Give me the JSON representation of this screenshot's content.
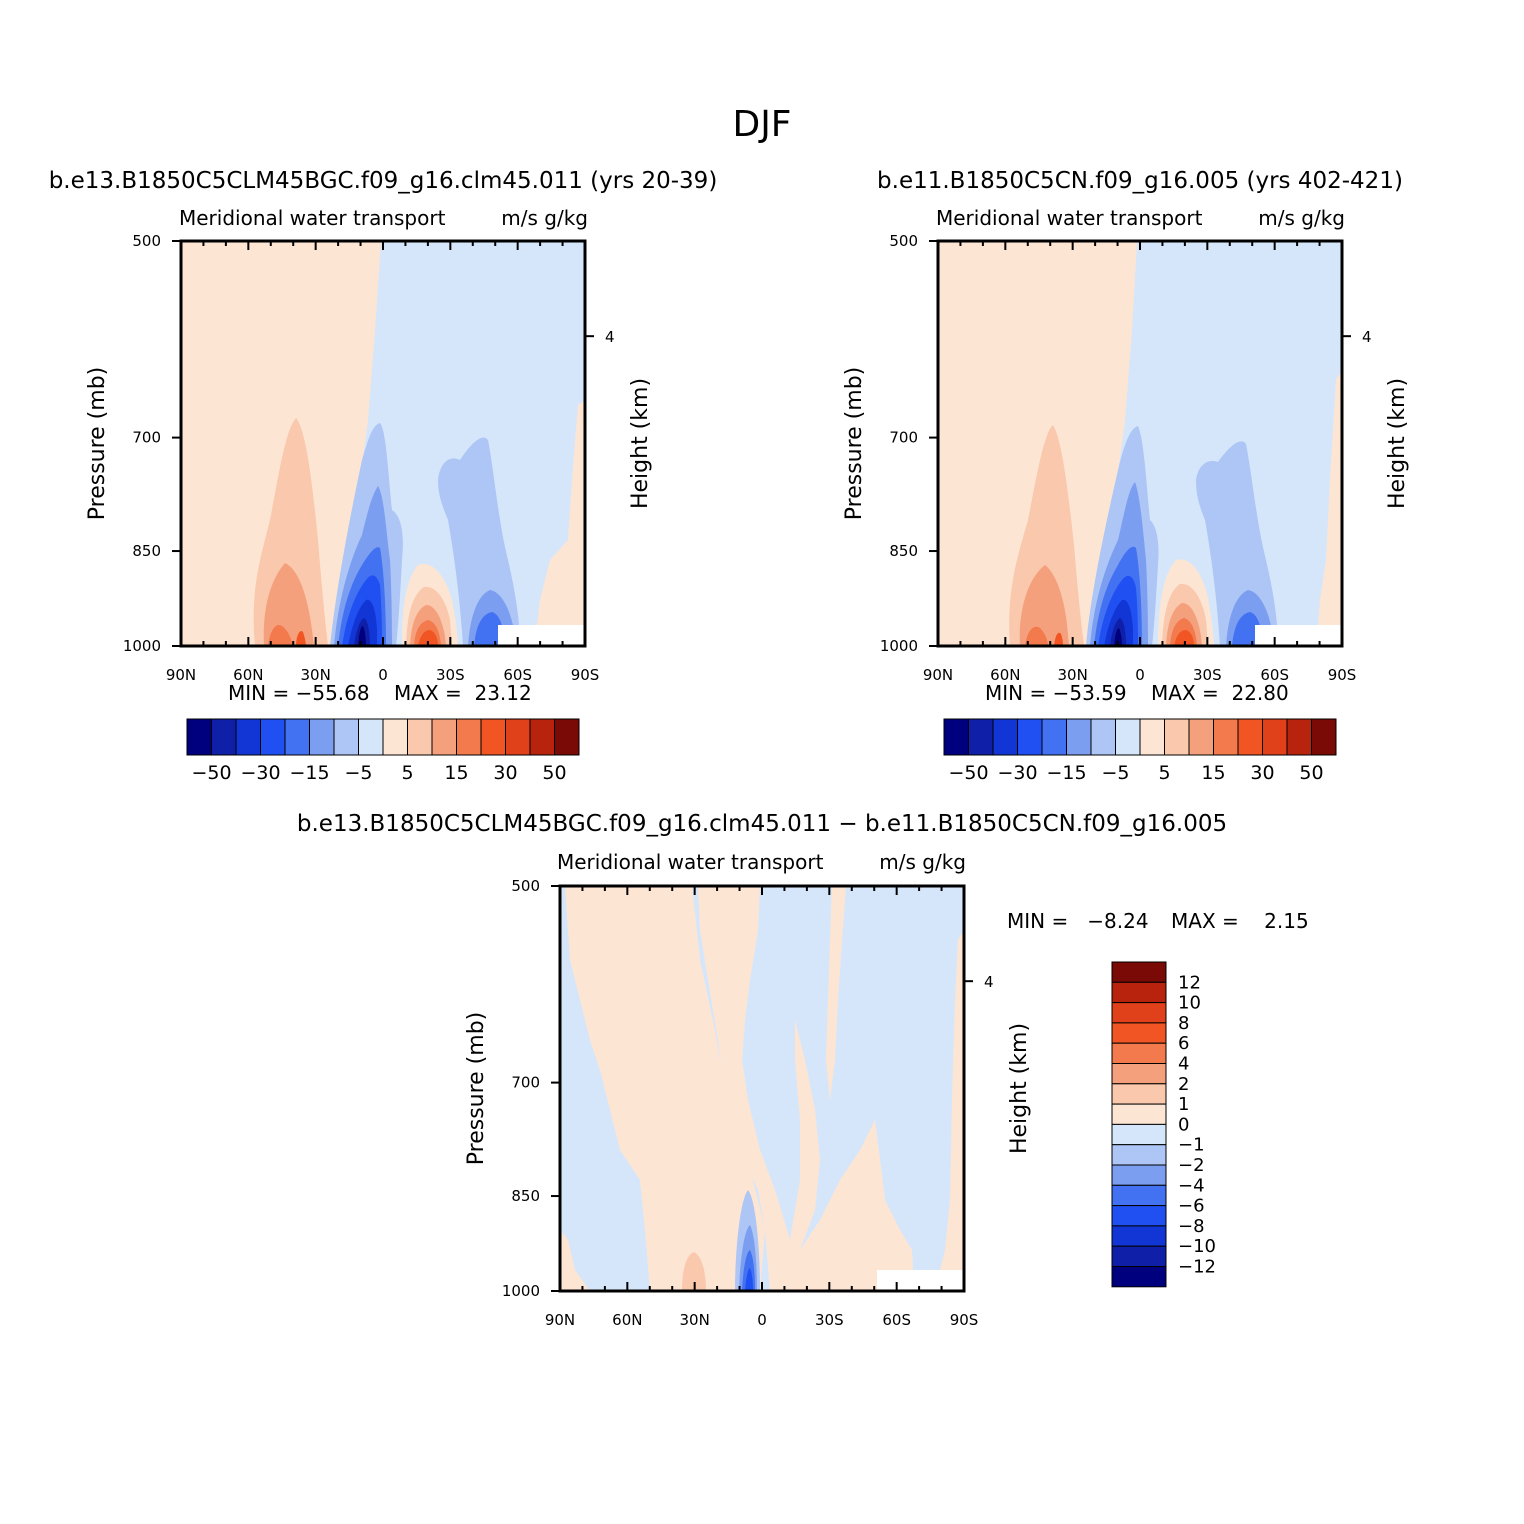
{
  "page_title": "DJF",
  "colors": {
    "c_neg_50": "#00007f",
    "c_neg_40": "#0f1fa8",
    "c_neg_30": "#1236d6",
    "c_neg_20": "#2150f2",
    "c_neg_15": "#4272f2",
    "c_neg_10": "#7c9ef0",
    "c_neg_5": "#adc6f5",
    "c_neg_1": "#d6e6fa",
    "c_pos_1": "#fde5d3",
    "c_pos_5": "#f9c8ad",
    "c_pos_10": "#f5a07d",
    "c_pos_15": "#f27a4d",
    "c_pos_20": "#f05523",
    "c_pos_30": "#e0401a",
    "c_pos_40": "#b7230d",
    "c_pos_50": "#7a0a05"
  },
  "chart_data": [
    {
      "type": "contour",
      "title": "b.e13.B1850C5CLM45BGC.f09_g16.clm45.011 (yrs 20-39)",
      "subtitle_left": "Meridional water transport",
      "subtitle_right": "m/s g/kg",
      "xlabel": "",
      "ylabel": "Pressure (mb)",
      "ylabel_right": "Height (km)",
      "x_ticks": [
        "90N",
        "60N",
        "30N",
        "0",
        "30S",
        "60S",
        "90S"
      ],
      "x_values": [
        90,
        60,
        30,
        0,
        -30,
        -60,
        -90
      ],
      "xlim": [
        90,
        -90
      ],
      "y_ticks": [
        "500",
        "700",
        "850",
        "1000"
      ],
      "y_values": [
        500,
        700,
        850,
        1000
      ],
      "ylim": [
        1000,
        500
      ],
      "right_ticks": [
        "4"
      ],
      "min_label": "MIN = −55.68",
      "max_label": "MAX =  23.12",
      "min": -55.68,
      "max": 23.12,
      "colorbar_labels": [
        "−50",
        "−30",
        "−15",
        "−5",
        "5",
        "15",
        "30",
        "50"
      ],
      "colorbar_levels": [
        -50,
        -40,
        -30,
        -20,
        -15,
        -10,
        -5,
        0,
        5,
        10,
        15,
        20,
        30,
        40,
        50
      ]
    },
    {
      "type": "contour",
      "title": "b.e11.B1850C5CN.f09_g16.005 (yrs 402-421)",
      "subtitle_left": "Meridional water transport",
      "subtitle_right": "m/s g/kg",
      "xlabel": "",
      "ylabel": "Pressure (mb)",
      "ylabel_right": "Height (km)",
      "x_ticks": [
        "90N",
        "60N",
        "30N",
        "0",
        "30S",
        "60S",
        "90S"
      ],
      "x_values": [
        90,
        60,
        30,
        0,
        -30,
        -60,
        -90
      ],
      "xlim": [
        90,
        -90
      ],
      "y_ticks": [
        "500",
        "700",
        "850",
        "1000"
      ],
      "y_values": [
        500,
        700,
        850,
        1000
      ],
      "ylim": [
        1000,
        500
      ],
      "right_ticks": [
        "4"
      ],
      "min_label": "MIN = −53.59",
      "max_label": "MAX =  22.80",
      "min": -53.59,
      "max": 22.8,
      "colorbar_labels": [
        "−50",
        "−30",
        "−15",
        "−5",
        "5",
        "15",
        "30",
        "50"
      ],
      "colorbar_levels": [
        -50,
        -40,
        -30,
        -20,
        -15,
        -10,
        -5,
        0,
        5,
        10,
        15,
        20,
        30,
        40,
        50
      ]
    },
    {
      "type": "contour",
      "title": "b.e13.B1850C5CLM45BGC.f09_g16.clm45.011 − b.e11.B1850C5CN.f09_g16.005",
      "subtitle_left": "Meridional water transport",
      "subtitle_right": "m/s g/kg",
      "xlabel": "",
      "ylabel": "Pressure (mb)",
      "ylabel_right": "Height (km)",
      "x_ticks": [
        "90N",
        "60N",
        "30N",
        "0",
        "30S",
        "60S",
        "90S"
      ],
      "x_values": [
        90,
        60,
        30,
        0,
        -30,
        -60,
        -90
      ],
      "xlim": [
        90,
        -90
      ],
      "y_ticks": [
        "500",
        "700",
        "850",
        "1000"
      ],
      "y_values": [
        500,
        700,
        850,
        1000
      ],
      "ylim": [
        1000,
        500
      ],
      "right_ticks": [
        "4"
      ],
      "min_label": "MIN =   −8.24",
      "max_label": "MAX =    2.15",
      "min": -8.24,
      "max": 2.15,
      "colorbar_labels": [
        "12",
        "10",
        "8",
        "6",
        "4",
        "2",
        "1",
        "0",
        "−1",
        "−2",
        "−4",
        "−6",
        "−8",
        "−10",
        "−12"
      ],
      "colorbar_levels": [
        12,
        10,
        8,
        6,
        4,
        2,
        1,
        0,
        -1,
        -2,
        -4,
        -6,
        -8,
        -10,
        -12
      ]
    }
  ]
}
